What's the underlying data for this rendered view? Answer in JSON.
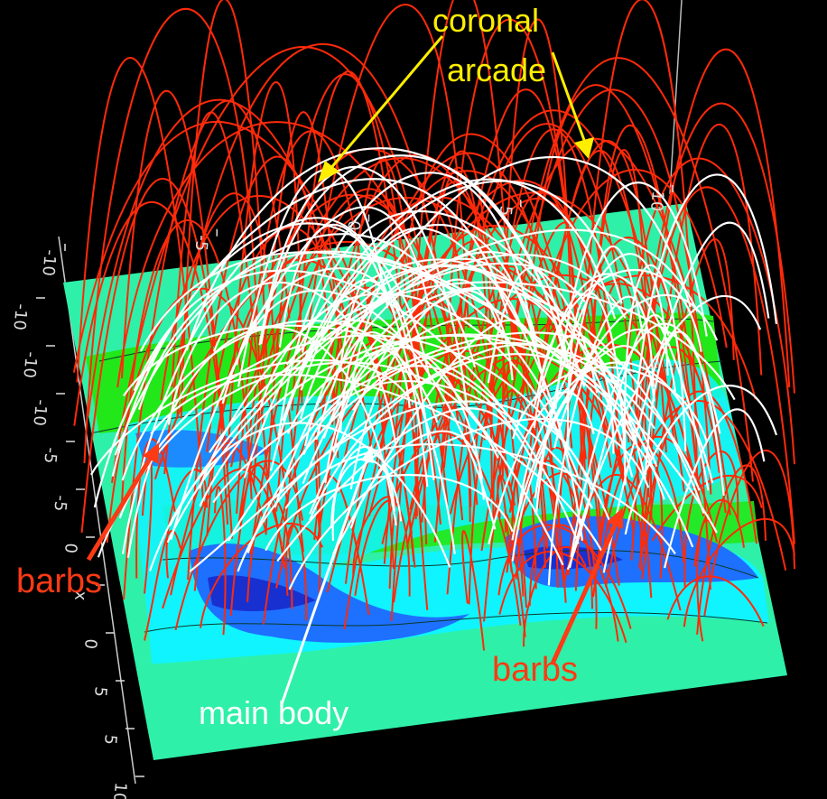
{
  "labels": {
    "coronal_line1": "coronal",
    "coronal_line2": "arcade",
    "barbs_left": "barbs",
    "barbs_right": "barbs",
    "main_body": "main body"
  },
  "axis_ticks": {
    "top": [
      "-10",
      "-5",
      "0",
      "5",
      "10"
    ],
    "left": [
      "-10",
      "-10",
      "-10",
      "-5",
      "-5",
      "0",
      "x",
      "0",
      "5",
      "5",
      "10"
    ]
  },
  "colors": {
    "background": "#000000",
    "label_yellow": "#ffee00",
    "label_red": "#ff3a14",
    "label_white": "#ffffff",
    "field_red": "#ff2a0a",
    "field_white": "#ffffff",
    "plane_base": "#2ef0a8",
    "plane_green": "#22e81a",
    "plane_cyan": "#10f4ff",
    "plane_blue": "#1e70ff",
    "plane_deep": "#1830d0"
  }
}
